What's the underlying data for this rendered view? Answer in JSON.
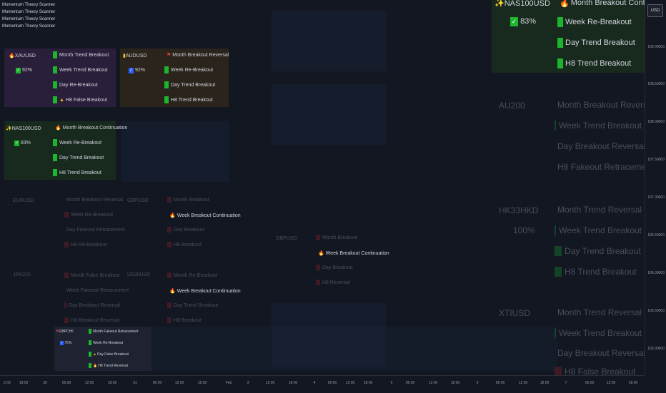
{
  "scanner_titles": [
    "Momentum Theory Scanner",
    "Momentum Theory Scanner",
    "Momentum Theory Scanner",
    "Momentum Theory Scanner"
  ],
  "currency_button": "USD",
  "y_axis_ticks": [
    "109.00000",
    "108.50000",
    "108.00000",
    "107.50000",
    "107.00000",
    "106.50000",
    "106.00000",
    "105.50000",
    "105.00000"
  ],
  "x_axis_ticks": [
    "2:00",
    "18:00",
    "30",
    "06:00",
    "12:00",
    "18:00",
    "31",
    "06:00",
    "12:00",
    "18:00",
    "Feb",
    "3",
    "12:00",
    "18:00",
    "4",
    "06:00",
    "12:00",
    "18:00",
    "5",
    "06:00",
    "12:00",
    "18:00",
    "6",
    "06:00",
    "12:00",
    "18:00",
    "7",
    "06:00",
    "12:00",
    "18:00"
  ],
  "colors": {
    "background": "#131722",
    "bullish": "#1db42e",
    "bearish": "#b22833",
    "purple_panel": "#2a1f3a",
    "brown_panel": "#2b241c",
    "green_panel": "#182a1e",
    "axis_text": "#9598a1"
  },
  "panels": [
    {
      "id": "xauusd",
      "symbol": "XAUUSD",
      "icon": "fire-icon",
      "pct": "92%",
      "rows": [
        "Month Trend Breakout",
        "Week Trend Breakout",
        "Day Re-Breakout",
        "H8 False Breakout"
      ]
    },
    {
      "id": "audusd",
      "symbol": "AUDUSD",
      "icon": "chart-icon",
      "pct": "92%",
      "rows": [
        "Month Breakout Reversal",
        "Week Re-Breakout",
        "Day Trend Breakout",
        "H8 Trend Breakout"
      ]
    },
    {
      "id": "nas100usd-left",
      "symbol": "NAS100USD",
      "icon": "sparkle-icon",
      "pct": "83%",
      "rows": [
        "Month Breakout Continuation",
        "Week Re-Breakout",
        "Day Trend Breakout",
        "H8 Trend Breakout"
      ]
    },
    {
      "id": "nas100usd-right",
      "symbol": "NAS100USD",
      "icon": "sparkle-icon",
      "pct": "83%",
      "rows": [
        "Month Breakout Continuation",
        "Week Re-Breakout",
        "Day Trend Breakout",
        "H8 Trend Breakout"
      ]
    },
    {
      "id": "gbpchf",
      "symbol": "GBPCHF",
      "icon": "flag-icon",
      "pct": "75%",
      "rows": [
        "Month Fakeout Retracement",
        "Week Re-Breakout",
        "Day False Breakout",
        "H8 Trend Reversal"
      ]
    }
  ],
  "faded_panels": [
    {
      "id": "eurusd",
      "symbol": "EURUSD",
      "rows": [
        "Month Breakout Reversal",
        "Week Re-Breakout",
        "Day Fakeout Retracement",
        "H8 Re-Breakout"
      ]
    },
    {
      "id": "gbpusd-mid",
      "symbol": "GBPUSD",
      "rows": [
        "Month Breakout",
        "Week Breakout Continuation",
        "Day Breakout",
        "H8 Breakout"
      ]
    },
    {
      "id": "jpn225",
      "symbol": "JPN225",
      "rows": [
        "Month False Breakout",
        "Week Fakeout Retracement",
        "Day Breakout Reversal",
        "H8 Breakout Reversal"
      ]
    },
    {
      "id": "us30usd",
      "symbol": "US30USD",
      "rows": [
        "Month Re-Breakout",
        "Week Breakout Continuation",
        "Day Trend Breakout",
        "H8 Breakout"
      ]
    },
    {
      "id": "gbpusd-center",
      "symbol": "GBPUSD",
      "rows": [
        "Month Breakout",
        "Week Breakout Continuation",
        "Day Breakout",
        "H8 Reversal"
      ]
    },
    {
      "id": "au200",
      "symbol": "AU200",
      "rows": [
        "Month Breakout Reversal",
        "Week Trend Breakout",
        "Day Breakout Reversal",
        "H8 Fakeout Retracement"
      ]
    },
    {
      "id": "hk33hkd",
      "symbol": "HK33HKD",
      "pct": "100%",
      "rows": [
        "Month Trend Reversal",
        "Week Trend Breakout",
        "Day Trend Breakout",
        "H8 Trend Breakout"
      ]
    },
    {
      "id": "xtiusd",
      "symbol": "XTIUSD",
      "rows": [
        "Month Trend Reversal",
        "Week Trend Breakout",
        "Day Breakout Reversal",
        "H8 False Breakout"
      ]
    }
  ]
}
